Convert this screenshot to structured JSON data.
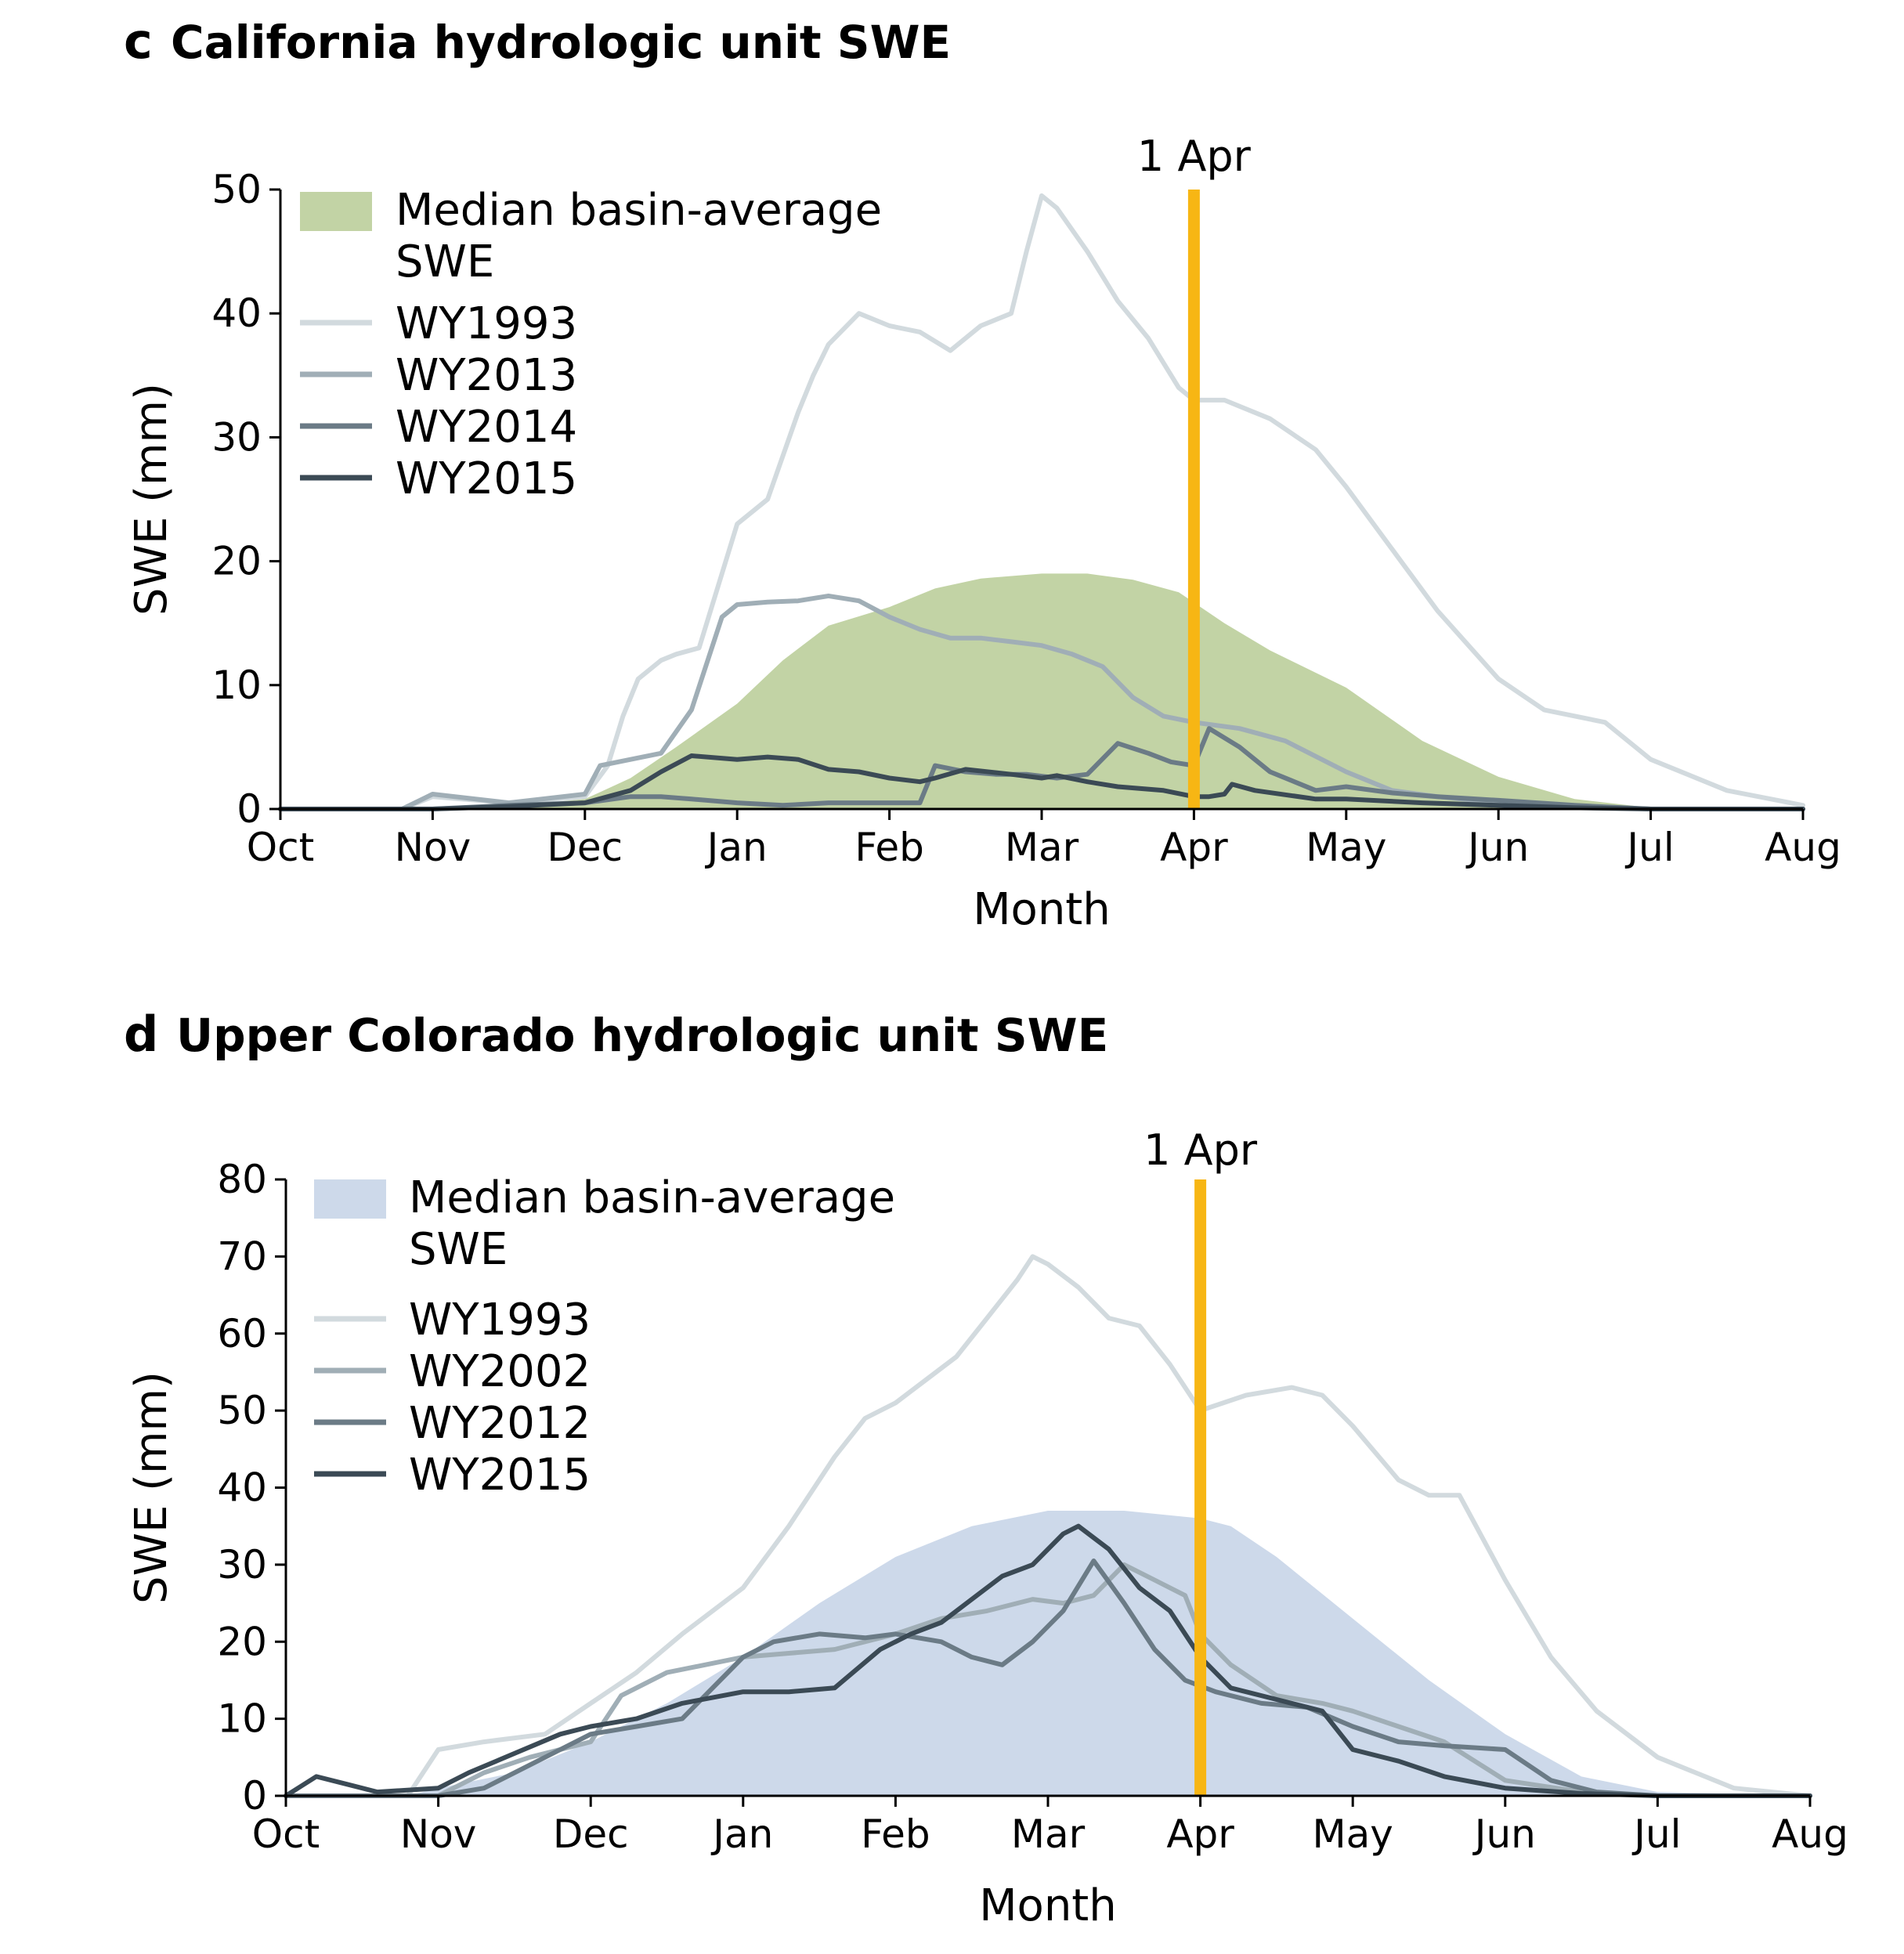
{
  "chart_data": [
    {
      "panel": "c",
      "type": "line",
      "title": "California hydrologic unit SWE",
      "xlabel": "Month",
      "ylabel": "SWE (mm)",
      "x_categories": [
        "Oct",
        "Nov",
        "Dec",
        "Jan",
        "Feb",
        "Mar",
        "Apr",
        "May",
        "Jun",
        "Jul",
        "Aug"
      ],
      "xlim": [
        0,
        10
      ],
      "ylim": [
        0,
        50
      ],
      "yticks": [
        0,
        10,
        20,
        30,
        40,
        50
      ],
      "vline": {
        "x": 6,
        "label": "1 Apr",
        "color": "#F7B614"
      },
      "area": {
        "name": "Median basin-average SWE",
        "label_lines": [
          "Median basin-average",
          "SWE"
        ],
        "color": "#C2D3A5",
        "x": [
          0,
          1,
          1.5,
          2,
          2.3,
          2.6,
          3,
          3.3,
          3.6,
          4,
          4.3,
          4.6,
          5,
          5.3,
          5.6,
          5.9,
          6.2,
          6.5,
          7,
          7.5,
          8,
          8.5,
          9,
          10
        ],
        "y": [
          0,
          0,
          0.2,
          0.8,
          2.5,
          5,
          8.5,
          12,
          14.8,
          16.3,
          17.8,
          18.6,
          19,
          19,
          18.5,
          17.5,
          15,
          12.8,
          9.8,
          5.5,
          2.6,
          0.8,
          0.1,
          0
        ]
      },
      "series": [
        {
          "name": "WY1993",
          "color": "#D2DADE",
          "x": [
            0,
            0.8,
            1,
            1.5,
            2,
            2.15,
            2.25,
            2.35,
            2.5,
            2.6,
            2.75,
            2.9,
            3,
            3.2,
            3.4,
            3.5,
            3.6,
            3.8,
            4,
            4.2,
            4.4,
            4.6,
            4.8,
            4.9,
            5,
            5.1,
            5.3,
            5.5,
            5.7,
            5.9,
            6,
            6.2,
            6.5,
            6.8,
            7,
            7.3,
            7.6,
            8,
            8.3,
            8.7,
            9,
            9.5,
            10
          ],
          "y": [
            0,
            0,
            1,
            0.5,
            1,
            3.5,
            7.5,
            10.5,
            12,
            12.5,
            13,
            19,
            23,
            25,
            32,
            35,
            37.5,
            40,
            39,
            38.5,
            37,
            39,
            40,
            45,
            49.5,
            48.5,
            45,
            41,
            38,
            34,
            33,
            33,
            31.5,
            29,
            26,
            21,
            16,
            10.5,
            8,
            7,
            4,
            1.5,
            0.3
          ]
        },
        {
          "name": "WY2013",
          "color": "#A0AEB6",
          "x": [
            0,
            0.8,
            1,
            1.5,
            2,
            2.1,
            2.3,
            2.5,
            2.7,
            2.9,
            3,
            3.2,
            3.4,
            3.6,
            3.8,
            4,
            4.2,
            4.4,
            4.6,
            4.8,
            5,
            5.2,
            5.4,
            5.6,
            5.8,
            6,
            6.3,
            6.6,
            7,
            7.3,
            7.6,
            8,
            8.5,
            9,
            10
          ],
          "y": [
            0,
            0,
            1.2,
            0.5,
            1.2,
            3.5,
            4,
            4.5,
            8,
            15.5,
            16.5,
            16.7,
            16.8,
            17.2,
            16.8,
            15.5,
            14.5,
            13.8,
            13.8,
            13.5,
            13.2,
            12.5,
            11.5,
            9,
            7.5,
            7,
            6.5,
            5.5,
            3,
            1.5,
            1,
            0.5,
            0.2,
            0,
            0
          ]
        },
        {
          "name": "WY2014",
          "color": "#6B7B86",
          "x": [
            0,
            1,
            1.5,
            2,
            2.3,
            2.5,
            2.7,
            3,
            3.3,
            3.6,
            3.9,
            4.2,
            4.3,
            4.5,
            4.7,
            4.9,
            5.1,
            5.3,
            5.5,
            5.7,
            5.85,
            6,
            6.1,
            6.3,
            6.5,
            6.8,
            7,
            7.3,
            7.6,
            8,
            8.5,
            9,
            10
          ],
          "y": [
            0,
            0,
            0.3,
            0.5,
            1,
            1,
            0.8,
            0.5,
            0.3,
            0.5,
            0.5,
            0.5,
            3.5,
            3,
            2.8,
            2.8,
            2.5,
            2.8,
            5.3,
            4.5,
            3.8,
            3.5,
            6.5,
            5,
            3,
            1.5,
            1.8,
            1.3,
            1,
            0.7,
            0.3,
            0,
            0
          ]
        },
        {
          "name": "WY2015",
          "color": "#3B4A55",
          "x": [
            0,
            1,
            1.5,
            2,
            2.3,
            2.5,
            2.7,
            3,
            3.2,
            3.4,
            3.6,
            3.8,
            4,
            4.2,
            4.3,
            4.5,
            4.8,
            5,
            5.1,
            5.3,
            5.5,
            5.8,
            6,
            6.1,
            6.2,
            6.25,
            6.4,
            6.8,
            7,
            7.5,
            8,
            8.5,
            9,
            10
          ],
          "y": [
            0,
            0,
            0.2,
            0.5,
            1.5,
            3,
            4.3,
            4,
            4.2,
            4,
            3.2,
            3,
            2.5,
            2.2,
            2.5,
            3.2,
            2.8,
            2.5,
            2.7,
            2.2,
            1.8,
            1.5,
            1,
            1,
            1.2,
            2,
            1.5,
            0.8,
            0.8,
            0.5,
            0.3,
            0.1,
            0,
            0
          ]
        }
      ]
    },
    {
      "panel": "d",
      "type": "line",
      "title": "Upper Colorado hydrologic unit SWE",
      "xlabel": "Month",
      "ylabel": "SWE (mm)",
      "x_categories": [
        "Oct",
        "Nov",
        "Dec",
        "Jan",
        "Feb",
        "Mar",
        "Apr",
        "May",
        "Jun",
        "Jul",
        "Aug"
      ],
      "xlim": [
        0,
        10
      ],
      "ylim": [
        0,
        80
      ],
      "yticks": [
        0,
        10,
        20,
        30,
        40,
        50,
        60,
        70,
        80
      ],
      "vline": {
        "x": 6,
        "label": "1 Apr",
        "color": "#F7B614"
      },
      "area": {
        "name": "Median basin-average SWE",
        "label_lines": [
          "Median basin-average",
          "SWE"
        ],
        "color": "#CDD9EA",
        "x": [
          0,
          0.8,
          1,
          1.5,
          2,
          2.5,
          3,
          3.5,
          4,
          4.5,
          5,
          5.5,
          6,
          6.2,
          6.5,
          7,
          7.5,
          8,
          8.5,
          9,
          10
        ],
        "y": [
          0,
          0,
          1,
          3,
          7,
          12,
          18,
          25,
          31,
          35,
          37,
          37,
          36,
          35,
          31,
          23,
          15,
          8,
          2.5,
          0.5,
          0
        ]
      },
      "series": [
        {
          "name": "WY1993",
          "color": "#D2DADE",
          "x": [
            0,
            0.8,
            1,
            1.3,
            1.7,
            2,
            2.3,
            2.6,
            3,
            3.3,
            3.6,
            3.8,
            4,
            4.2,
            4.4,
            4.6,
            4.8,
            4.9,
            5,
            5.2,
            5.4,
            5.6,
            5.8,
            6,
            6.3,
            6.6,
            6.8,
            7,
            7.3,
            7.5,
            7.7,
            8,
            8.3,
            8.6,
            9,
            9.5,
            10
          ],
          "y": [
            0,
            0,
            6,
            7,
            8,
            12,
            16,
            21,
            27,
            35,
            44,
            49,
            51,
            54,
            57,
            62,
            67,
            70,
            69,
            66,
            62,
            61,
            56,
            50,
            52,
            53,
            52,
            48,
            41,
            39,
            39,
            28,
            18,
            11,
            5,
            1,
            0
          ]
        },
        {
          "name": "WY2002",
          "color": "#A0AEB6",
          "x": [
            0,
            1,
            1.3,
            1.6,
            2,
            2.2,
            2.5,
            3,
            3.3,
            3.6,
            4,
            4.3,
            4.6,
            4.9,
            5.1,
            5.3,
            5.5,
            5.7,
            5.9,
            6,
            6.2,
            6.5,
            6.8,
            7,
            7.3,
            7.6,
            8,
            8.5,
            9,
            10
          ],
          "y": [
            0,
            0,
            3,
            5,
            7,
            13,
            16,
            18,
            18.5,
            19,
            21,
            23,
            24,
            25.5,
            25,
            26,
            30,
            28,
            26,
            21,
            17,
            13,
            12,
            11,
            9,
            7,
            2,
            0.5,
            0,
            0
          ]
        },
        {
          "name": "WY2012",
          "color": "#6B7B86",
          "x": [
            0,
            1,
            1.3,
            1.6,
            1.8,
            2,
            2.3,
            2.6,
            3,
            3.2,
            3.5,
            3.8,
            4,
            4.3,
            4.5,
            4.7,
            4.9,
            5.1,
            5.3,
            5.5,
            5.7,
            5.9,
            6.1,
            6.4,
            6.7,
            7,
            7.3,
            7.6,
            8,
            8.3,
            8.6,
            9,
            10
          ],
          "y": [
            0,
            0,
            1,
            4,
            6,
            8,
            9,
            10,
            18,
            20,
            21,
            20.5,
            21,
            20,
            18,
            17,
            20,
            24,
            30.5,
            25,
            19,
            15,
            13.5,
            12,
            11.5,
            9,
            7,
            6.5,
            6,
            2,
            0.5,
            0,
            0
          ]
        },
        {
          "name": "WY2015",
          "color": "#3B4A55",
          "x": [
            0,
            0.2,
            0.4,
            0.6,
            1,
            1.2,
            1.5,
            1.8,
            2,
            2.3,
            2.6,
            3,
            3.3,
            3.6,
            3.9,
            4.1,
            4.3,
            4.5,
            4.7,
            4.9,
            5.1,
            5.2,
            5.4,
            5.6,
            5.8,
            6,
            6.2,
            6.5,
            6.8,
            7,
            7.3,
            7.6,
            8,
            8.5,
            9,
            10
          ],
          "y": [
            0,
            2.5,
            1.5,
            0.5,
            1,
            3,
            5.5,
            8,
            9,
            10,
            12,
            13.5,
            13.5,
            14,
            19,
            21,
            22.5,
            25.5,
            28.5,
            30,
            34,
            35,
            32,
            27,
            24,
            18,
            14,
            12.5,
            11,
            6,
            4.5,
            2.5,
            1,
            0.3,
            0,
            0
          ]
        }
      ]
    }
  ]
}
